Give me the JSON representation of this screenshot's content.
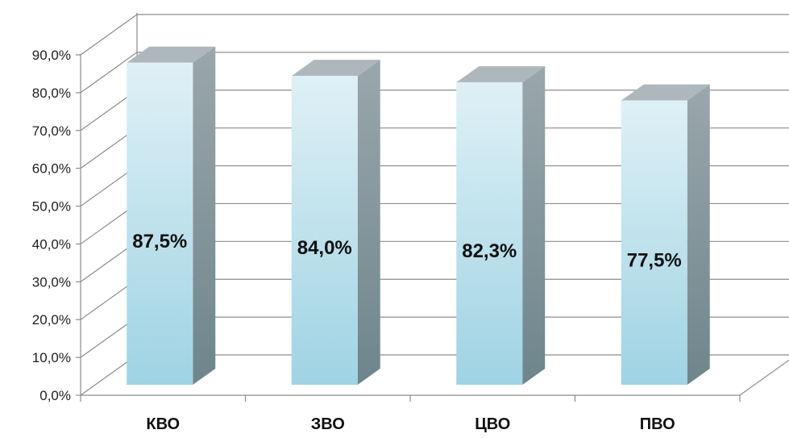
{
  "chart_data": {
    "type": "bar",
    "categories": [
      "КВО",
      "ЗВО",
      "ЦВО",
      "ПВО"
    ],
    "values": [
      87.5,
      84.0,
      82.3,
      77.5
    ],
    "data_labels": [
      "87,5%",
      "84,0%",
      "82,3%",
      "77,5%"
    ],
    "y_ticks": [
      0,
      10,
      20,
      30,
      40,
      50,
      60,
      70,
      80,
      90
    ],
    "y_tick_labels": [
      "0,0%",
      "10,0%",
      "20,0%",
      "30,0%",
      "40,0%",
      "50,0%",
      "60,0%",
      "70,0%",
      "80,0%",
      "90,0%"
    ],
    "ylim": [
      0,
      90
    ],
    "grid": true,
    "legend": "none",
    "colors": {
      "bar_front_top": "#dff0f6",
      "bar_front_bottom": "#9fd3e3",
      "bar_side_top": "#9aa7ac",
      "bar_side_bottom": "#6e858c",
      "bar_top": "#aeb8bc"
    }
  }
}
